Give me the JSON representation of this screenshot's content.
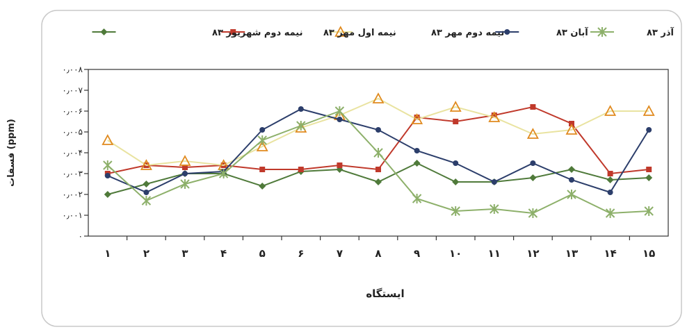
{
  "chart_data": {
    "type": "line",
    "title": "",
    "xlabel": "ایستگاه",
    "ylabel": "فسفات (ppm)",
    "x": [
      "۱",
      "۲",
      "۳",
      "۴",
      "۵",
      "۶",
      "۷",
      "۸",
      "۹",
      "۱۰",
      "۱۱",
      "۱۲",
      "۱۳",
      "۱۴",
      "۱۵"
    ],
    "ylim": [
      0,
      0.008
    ],
    "yticks": [
      0,
      0.001,
      0.002,
      0.003,
      0.004,
      0.005,
      0.006,
      0.007,
      0.008
    ],
    "ytick_labels": [
      "۰",
      "۰٫۰۰۱",
      "۰٫۰۰۲",
      "۰٫۰۰۳",
      "۰٫۰۰۴",
      "۰٫۰۰۵",
      "۰٫۰۰۶",
      "۰٫۰۰۷",
      "۰٫۰۰۸"
    ],
    "grid": false,
    "legend_position": "top",
    "series": [
      {
        "name": "نیمه دوم شهریور ۸۳",
        "color": "#4f7a3a",
        "marker": "diamond",
        "values": [
          0.002,
          0.0025,
          0.003,
          0.003,
          0.0024,
          0.0031,
          0.0032,
          0.0026,
          0.0035,
          0.0026,
          0.0026,
          0.0028,
          0.0032,
          0.0027,
          0.0028
        ]
      },
      {
        "name": "نیمه اول مهر ۸۳",
        "color": "#c0392b",
        "marker": "square",
        "values": [
          0.003,
          0.0034,
          0.0033,
          0.0034,
          0.0032,
          0.0032,
          0.0034,
          0.0032,
          0.0057,
          0.0055,
          0.0058,
          0.0062,
          0.0054,
          0.003,
          0.0032
        ]
      },
      {
        "name": "نیمه دوم مهر ۸۳",
        "color": "#e9e3a0",
        "marker": "triangle",
        "marker_color": "#e08a1e",
        "values": [
          0.0046,
          0.0034,
          0.0036,
          0.0034,
          0.0043,
          0.0052,
          0.0058,
          0.0066,
          0.0056,
          0.0062,
          0.0057,
          0.0049,
          0.0051,
          0.006,
          0.006
        ]
      },
      {
        "name": "آبان ۸۳",
        "color": "#2c3e6b",
        "marker": "circle",
        "values": [
          0.0029,
          0.0021,
          0.003,
          0.0031,
          0.0051,
          0.0061,
          0.0056,
          0.0051,
          0.0041,
          0.0035,
          0.0026,
          0.0035,
          0.0027,
          0.0021,
          0.0051
        ]
      },
      {
        "name": "آذر ۸۳",
        "color": "#8db06a",
        "marker": "star",
        "values": [
          0.0034,
          0.0017,
          0.0025,
          0.003,
          0.0046,
          0.0053,
          0.006,
          0.004,
          0.0018,
          0.0012,
          0.0013,
          0.0011,
          0.002,
          0.0011,
          0.0012
        ]
      }
    ]
  }
}
